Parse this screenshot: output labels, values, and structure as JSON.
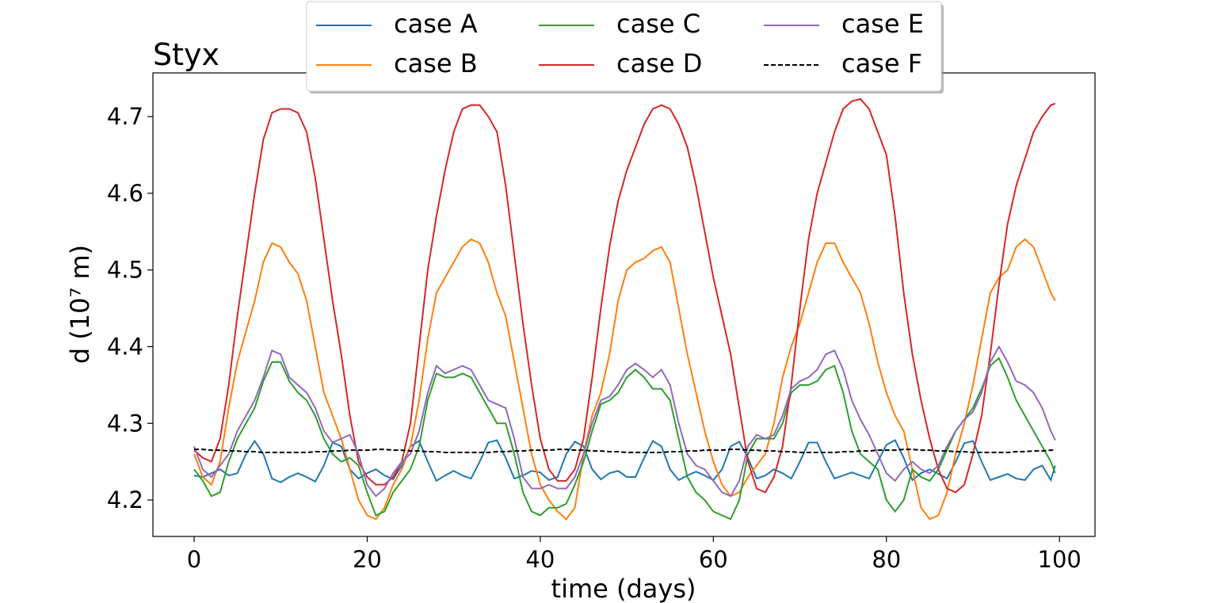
{
  "chart_data": {
    "type": "line",
    "title": "Styx",
    "xlabel": "time (days)",
    "ylabel": "d (10⁷ m)",
    "x": [
      0,
      1,
      2,
      3,
      4,
      5,
      6,
      7,
      8,
      9,
      10,
      11,
      12,
      13,
      14,
      15,
      16,
      17,
      18,
      19,
      20,
      21,
      22,
      23,
      24,
      25,
      26,
      27,
      28,
      29,
      30,
      31,
      32,
      33,
      34,
      35,
      36,
      37,
      38,
      39,
      40,
      41,
      42,
      43,
      44,
      45,
      46,
      47,
      48,
      49,
      50,
      51,
      52,
      53,
      54,
      55,
      56,
      57,
      58,
      59,
      60,
      61,
      62,
      63,
      64,
      65,
      66,
      67,
      68,
      69,
      70,
      71,
      72,
      73,
      74,
      75,
      76,
      77,
      78,
      79,
      80,
      81,
      82,
      83,
      84,
      85,
      86,
      87,
      88,
      89,
      90,
      91,
      92,
      93,
      94,
      95,
      96,
      97,
      98,
      99,
      99.5
    ],
    "xlim": [
      -4.76,
      104.1
    ],
    "xticks": [
      0,
      20,
      40,
      60,
      80,
      100
    ],
    "ylim": [
      4.1525,
      4.757
    ],
    "yticks": [
      4.2,
      4.3,
      4.4,
      4.5,
      4.6,
      4.7
    ],
    "legend": "upper center",
    "series": [
      {
        "name": "case A",
        "color": "#1f77b4",
        "linestyle": "solid",
        "values": [
          4.232,
          4.23,
          4.235,
          4.24,
          4.232,
          4.235,
          4.26,
          4.277,
          4.26,
          4.228,
          4.223,
          4.23,
          4.235,
          4.23,
          4.224,
          4.245,
          4.275,
          4.27,
          4.24,
          4.228,
          4.235,
          4.24,
          4.232,
          4.227,
          4.245,
          4.27,
          4.277,
          4.25,
          4.225,
          4.232,
          4.238,
          4.232,
          4.228,
          4.25,
          4.275,
          4.278,
          4.255,
          4.228,
          4.232,
          4.238,
          4.236,
          4.226,
          4.23,
          4.26,
          4.276,
          4.27,
          4.24,
          4.227,
          4.235,
          4.238,
          4.23,
          4.23,
          4.255,
          4.277,
          4.27,
          4.24,
          4.226,
          4.232,
          4.237,
          4.232,
          4.226,
          4.24,
          4.27,
          4.276,
          4.255,
          4.228,
          4.232,
          4.24,
          4.235,
          4.228,
          4.25,
          4.275,
          4.275,
          4.25,
          4.228,
          4.232,
          4.236,
          4.232,
          4.228,
          4.25,
          4.272,
          4.278,
          4.255,
          4.226,
          4.235,
          4.24,
          4.234,
          4.228,
          4.25,
          4.274,
          4.277,
          4.25,
          4.226,
          4.23,
          4.234,
          4.228,
          4.226,
          4.24,
          4.245,
          4.226,
          4.245
        ]
      },
      {
        "name": "case B",
        "color": "#ff7f0e",
        "linestyle": "solid",
        "values": [
          4.26,
          4.23,
          4.22,
          4.25,
          4.32,
          4.38,
          4.42,
          4.46,
          4.51,
          4.535,
          4.53,
          4.51,
          4.495,
          4.46,
          4.4,
          4.34,
          4.31,
          4.28,
          4.24,
          4.2,
          4.18,
          4.175,
          4.19,
          4.22,
          4.24,
          4.27,
          4.33,
          4.41,
          4.47,
          4.49,
          4.51,
          4.53,
          4.54,
          4.535,
          4.51,
          4.47,
          4.44,
          4.38,
          4.32,
          4.26,
          4.22,
          4.2,
          4.185,
          4.175,
          4.19,
          4.26,
          4.31,
          4.34,
          4.39,
          4.46,
          4.5,
          4.51,
          4.515,
          4.525,
          4.53,
          4.51,
          4.45,
          4.39,
          4.34,
          4.29,
          4.25,
          4.22,
          4.205,
          4.21,
          4.23,
          4.245,
          4.26,
          4.3,
          4.36,
          4.4,
          4.43,
          4.47,
          4.51,
          4.535,
          4.535,
          4.51,
          4.49,
          4.47,
          4.43,
          4.38,
          4.34,
          4.31,
          4.29,
          4.24,
          4.19,
          4.175,
          4.18,
          4.21,
          4.26,
          4.3,
          4.35,
          4.41,
          4.47,
          4.49,
          4.5,
          4.53,
          4.54,
          4.53,
          4.5,
          4.47,
          4.46
        ]
      },
      {
        "name": "case C",
        "color": "#2ca02c",
        "linestyle": "solid",
        "values": [
          4.24,
          4.225,
          4.205,
          4.21,
          4.25,
          4.28,
          4.3,
          4.32,
          4.355,
          4.38,
          4.38,
          4.355,
          4.34,
          4.33,
          4.31,
          4.28,
          4.26,
          4.25,
          4.255,
          4.245,
          4.21,
          4.18,
          4.185,
          4.21,
          4.225,
          4.24,
          4.27,
          4.33,
          4.365,
          4.36,
          4.36,
          4.365,
          4.36,
          4.34,
          4.32,
          4.3,
          4.3,
          4.26,
          4.21,
          4.185,
          4.18,
          4.19,
          4.19,
          4.195,
          4.22,
          4.25,
          4.29,
          4.325,
          4.33,
          4.34,
          4.36,
          4.37,
          4.36,
          4.345,
          4.345,
          4.33,
          4.28,
          4.23,
          4.21,
          4.2,
          4.185,
          4.18,
          4.175,
          4.2,
          4.26,
          4.28,
          4.28,
          4.28,
          4.3,
          4.34,
          4.35,
          4.35,
          4.355,
          4.37,
          4.375,
          4.34,
          4.29,
          4.26,
          4.25,
          4.24,
          4.2,
          4.185,
          4.2,
          4.24,
          4.23,
          4.225,
          4.24,
          4.265,
          4.29,
          4.305,
          4.32,
          4.345,
          4.375,
          4.385,
          4.36,
          4.33,
          4.31,
          4.29,
          4.27,
          4.25,
          4.235
        ]
      },
      {
        "name": "case D",
        "color": "#d62728",
        "linestyle": "solid",
        "values": [
          4.265,
          4.255,
          4.25,
          4.28,
          4.35,
          4.44,
          4.52,
          4.6,
          4.67,
          4.705,
          4.71,
          4.71,
          4.705,
          4.68,
          4.62,
          4.54,
          4.46,
          4.39,
          4.31,
          4.25,
          4.23,
          4.22,
          4.22,
          4.23,
          4.25,
          4.3,
          4.4,
          4.5,
          4.57,
          4.63,
          4.68,
          4.71,
          4.715,
          4.715,
          4.7,
          4.68,
          4.61,
          4.52,
          4.43,
          4.35,
          4.28,
          4.24,
          4.225,
          4.225,
          4.24,
          4.28,
          4.36,
          4.45,
          4.53,
          4.59,
          4.63,
          4.66,
          4.69,
          4.71,
          4.715,
          4.71,
          4.69,
          4.66,
          4.61,
          4.55,
          4.49,
          4.44,
          4.39,
          4.32,
          4.25,
          4.215,
          4.21,
          4.23,
          4.27,
          4.35,
          4.45,
          4.54,
          4.6,
          4.64,
          4.68,
          4.71,
          4.72,
          4.723,
          4.71,
          4.68,
          4.65,
          4.57,
          4.47,
          4.39,
          4.33,
          4.28,
          4.24,
          4.215,
          4.21,
          4.22,
          4.26,
          4.31,
          4.39,
          4.48,
          4.56,
          4.61,
          4.645,
          4.68,
          4.7,
          4.715,
          4.717
        ]
      },
      {
        "name": "case E",
        "color": "#9467bd",
        "linestyle": "solid",
        "values": [
          4.27,
          4.24,
          4.23,
          4.245,
          4.26,
          4.29,
          4.31,
          4.33,
          4.36,
          4.395,
          4.39,
          4.36,
          4.35,
          4.34,
          4.32,
          4.29,
          4.275,
          4.28,
          4.285,
          4.26,
          4.22,
          4.205,
          4.215,
          4.235,
          4.25,
          4.26,
          4.29,
          4.34,
          4.375,
          4.365,
          4.37,
          4.375,
          4.37,
          4.35,
          4.33,
          4.325,
          4.32,
          4.28,
          4.23,
          4.215,
          4.215,
          4.22,
          4.215,
          4.215,
          4.23,
          4.26,
          4.3,
          4.33,
          4.335,
          4.35,
          4.37,
          4.378,
          4.37,
          4.36,
          4.37,
          4.35,
          4.3,
          4.26,
          4.245,
          4.24,
          4.225,
          4.21,
          4.205,
          4.225,
          4.27,
          4.285,
          4.28,
          4.285,
          4.31,
          4.345,
          4.355,
          4.36,
          4.37,
          4.39,
          4.395,
          4.37,
          4.33,
          4.305,
          4.285,
          4.26,
          4.235,
          4.225,
          4.24,
          4.25,
          4.24,
          4.235,
          4.245,
          4.27,
          4.29,
          4.305,
          4.315,
          4.34,
          4.38,
          4.4,
          4.38,
          4.355,
          4.35,
          4.34,
          4.32,
          4.29,
          4.278
        ]
      },
      {
        "name": "case F",
        "color": "#000000",
        "linestyle": "dashed",
        "values": [
          4.266,
          4.266,
          4.265,
          4.265,
          4.264,
          4.264,
          4.263,
          4.263,
          4.262,
          4.262,
          4.262,
          4.262,
          4.262,
          4.262,
          4.263,
          4.263,
          4.264,
          4.264,
          4.265,
          4.265,
          4.265,
          4.266,
          4.266,
          4.265,
          4.265,
          4.264,
          4.264,
          4.263,
          4.263,
          4.262,
          4.262,
          4.262,
          4.262,
          4.262,
          4.262,
          4.263,
          4.263,
          4.264,
          4.264,
          4.265,
          4.265,
          4.265,
          4.266,
          4.266,
          4.265,
          4.265,
          4.264,
          4.264,
          4.263,
          4.263,
          4.262,
          4.262,
          4.262,
          4.262,
          4.262,
          4.263,
          4.263,
          4.264,
          4.264,
          4.265,
          4.265,
          4.265,
          4.266,
          4.266,
          4.265,
          4.265,
          4.264,
          4.264,
          4.263,
          4.263,
          4.262,
          4.262,
          4.262,
          4.262,
          4.262,
          4.263,
          4.263,
          4.264,
          4.264,
          4.265,
          4.265,
          4.265,
          4.266,
          4.266,
          4.265,
          4.265,
          4.264,
          4.264,
          4.263,
          4.263,
          4.262,
          4.262,
          4.262,
          4.262,
          4.262,
          4.263,
          4.263,
          4.264,
          4.264,
          4.265,
          4.265
        ]
      }
    ]
  }
}
